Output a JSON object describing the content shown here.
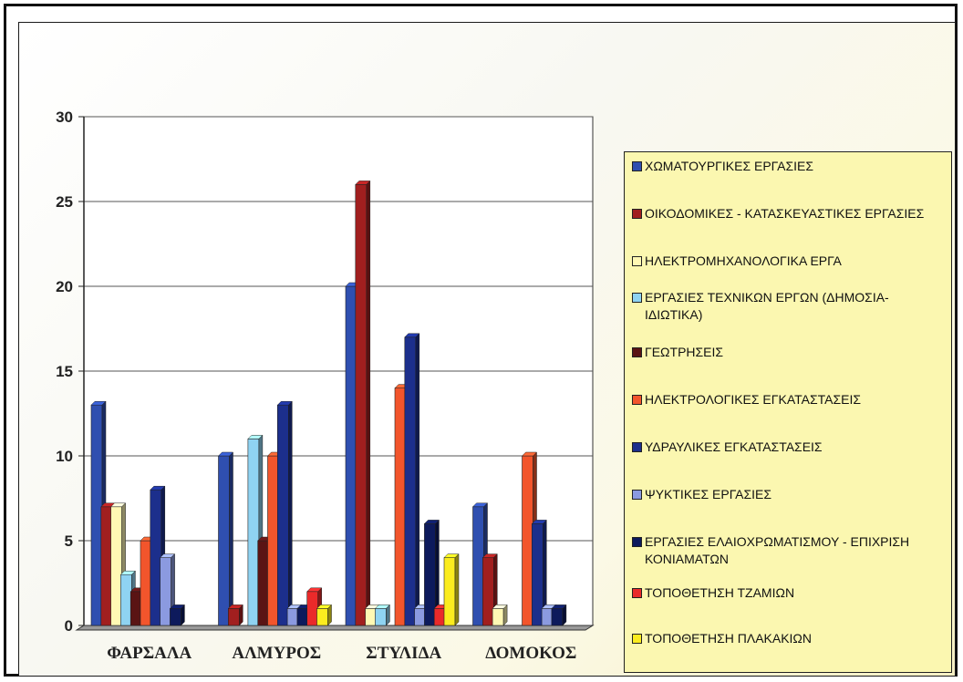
{
  "chart_data": {
    "type": "bar",
    "categories": [
      "ΦΑΡΣΑΛΑ",
      "ΑΛΜΥΡΟΣ",
      "ΣΤΥΛΙΔΑ",
      "ΔΟΜΟΚΟΣ"
    ],
    "ylim": [
      0,
      30
    ],
    "yticks": [
      "0",
      "5",
      "10",
      "15",
      "20",
      "25",
      "30"
    ],
    "grid": true,
    "legend_position": "right",
    "series": [
      {
        "name": "ΧΩΜΑΤΟΥΡΓΙΚΕΣ ΕΡΓΑΣΙΕΣ",
        "color": "#2f4fb0",
        "values": [
          13,
          10,
          20,
          7
        ]
      },
      {
        "name": "ΟΙΚΟΔΟΜΙΚΕΣ - ΚΑΤΑΣΚΕΥΑΣΤΙΚΕΣ ΕΡΓΑΣΙΕΣ",
        "color": "#a11f1f",
        "values": [
          7,
          1,
          26,
          4
        ]
      },
      {
        "name": "ΗΛΕΚΤΡΟΜΗΧΑΝΟΛΟΓΙΚΑ ΕΡΓΑ",
        "color": "#fff8b4",
        "values": [
          7,
          0,
          1,
          1
        ]
      },
      {
        "name": "ΕΡΓΑΣΙΕΣ ΤΕΧΝΙΚΩΝ ΕΡΓΩΝ (ΔΗΜΟΣΙΑ-ΙΔΙΩΤΙΚΑ)",
        "color": "#8fd3f2",
        "values": [
          3,
          11,
          1,
          0
        ]
      },
      {
        "name": "ΓΕΩΤΡΗΣΕΙΣ",
        "color": "#5a1414",
        "values": [
          2,
          5,
          0,
          0
        ]
      },
      {
        "name": "ΗΛΕΚΤΡΟΛΟΓΙΚΕΣ ΕΓΚΑΤΑΣΤΑΣΕΙΣ",
        "color": "#f2552c",
        "values": [
          5,
          10,
          14,
          10
        ]
      },
      {
        "name": "ΥΔΡΑΥΛΙΚΕΣ ΕΓΚΑΤΑΣΤΑΣΕΙΣ",
        "color": "#1c2f8c",
        "values": [
          8,
          13,
          17,
          6
        ]
      },
      {
        "name": "ΨΥΚΤΙΚΕΣ ΕΡΓΑΣΙΕΣ",
        "color": "#8b9ae0",
        "values": [
          4,
          1,
          1,
          1
        ]
      },
      {
        "name": "ΕΡΓΑΣΙΕΣ ΕΛΑΙΟΧΡΩΜΑΤΙΣΜΟΥ - ΕΠΙΧΡΙΣΗ ΚΟΝΙΑΜΑΤΩΝ",
        "color": "#0d1a5c",
        "values": [
          1,
          1,
          6,
          1
        ]
      },
      {
        "name": "ΤΟΠΟΘΕΤΗΣΗ ΤΖΑΜΙΩΝ",
        "color": "#ea2a2a",
        "values": [
          0,
          2,
          1,
          0
        ]
      },
      {
        "name": "ΤΟΠΟΘΕΤΗΣΗ ΠΛΑΚΑΚΙΩΝ",
        "color": "#fbec1f",
        "values": [
          0,
          1,
          4,
          0
        ]
      }
    ]
  }
}
